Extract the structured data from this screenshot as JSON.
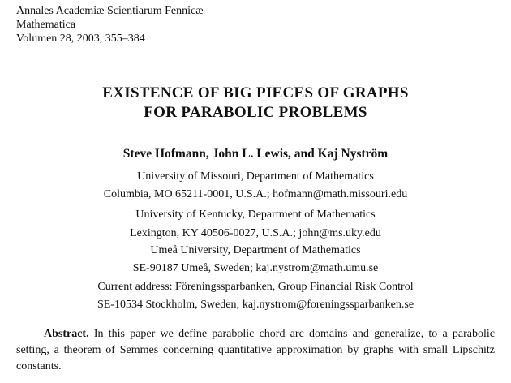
{
  "journal": {
    "name": "Annales Academiæ Scientiarum Fennicæ",
    "series": "Mathematica",
    "volume": "Volumen 28, 2003, 355–384"
  },
  "title": {
    "line1": "EXISTENCE OF BIG PIECES OF GRAPHS",
    "line2": "FOR PARABOLIC PROBLEMS"
  },
  "authors": "Steve Hofmann, John L. Lewis, and Kaj Nyström",
  "affiliations": [
    {
      "line1": "University of Missouri, Department of Mathematics",
      "line2": "Columbia, MO 65211-0001, U.S.A.; hofmann@math.missouri.edu"
    },
    {
      "line1": "University of Kentucky, Department of Mathematics",
      "line2": "Lexington, KY 40506-0027, U.S.A.; john@ms.uky.edu"
    },
    {
      "line1": "Umeå University, Department of Mathematics",
      "line2": "SE-90187 Umeå, Sweden; kaj.nystrom@math.umu.se"
    },
    {
      "line1": "Current address: Föreningssparbanken, Group Financial Risk Control",
      "line2": "SE-10534 Stockholm, Sweden; kaj.nystrom@foreningssparbanken.se"
    }
  ],
  "abstract": {
    "label": "Abstract.",
    "text": "In this paper we define parabolic chord arc domains and generalize, to a parabolic setting, a theorem of Semmes concerning quantitative approximation by graphs with small Lipschitz constants."
  }
}
